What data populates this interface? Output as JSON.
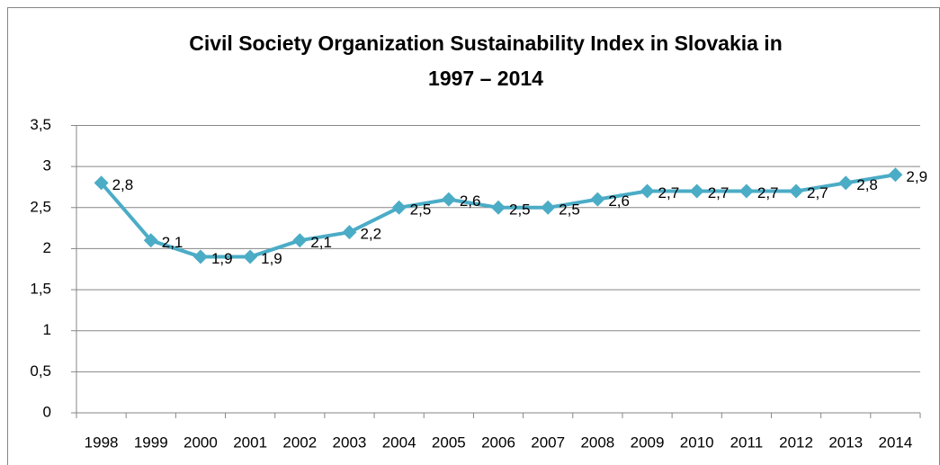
{
  "chart_data": {
    "type": "line",
    "title": [
      "Civil Society Organization Sustainability Index in Slovakia in",
      "1997 – 2014"
    ],
    "categories": [
      "1998",
      "1999",
      "2000",
      "2001",
      "2002",
      "2003",
      "2004",
      "2005",
      "2006",
      "2007",
      "2008",
      "2009",
      "2010",
      "2011",
      "2012",
      "2013",
      "2014"
    ],
    "series": [
      {
        "name": "Index",
        "color": "#4bacc6",
        "values": [
          2.8,
          2.1,
          1.9,
          1.9,
          2.1,
          2.2,
          2.5,
          2.6,
          2.5,
          2.5,
          2.6,
          2.7,
          2.7,
          2.7,
          2.7,
          2.8,
          2.9
        ],
        "value_labels": [
          "2,8",
          "2,1",
          "1,9",
          "1,9",
          "2,1",
          "2,2",
          "2,5",
          "2,6",
          "2,5",
          "2,5",
          "2,6",
          "2,7",
          "2,7",
          "2,7",
          "2,7",
          "2,8",
          "2,9"
        ]
      }
    ],
    "ylim": [
      0,
      3.5
    ],
    "yticks": [
      0,
      {
        "value": 0.5,
        "label": "0,5"
      },
      1,
      {
        "value": 1.5,
        "label": "1,5"
      },
      2,
      {
        "value": 2.5,
        "label": "2,5"
      },
      3,
      {
        "value": 3.5,
        "label": "3,5"
      }
    ],
    "grid": true
  }
}
